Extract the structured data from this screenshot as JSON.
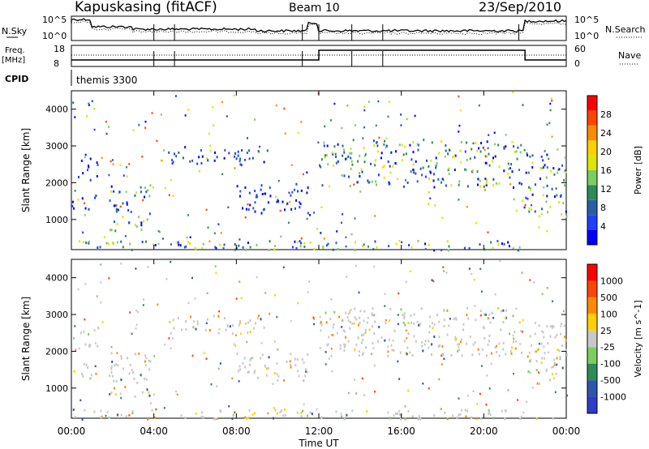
{
  "header": {
    "station": "Kapuskasing (fitACF)",
    "beam": "Beam 10",
    "date": "23/Sep/2010"
  },
  "panels": {
    "nsky": {
      "label": "N.Sky",
      "ticks_left": [
        "10^5",
        "10^0"
      ],
      "ticks_right": [
        "10^5",
        "10^0"
      ],
      "right_label": "N.Search"
    },
    "freq": {
      "label": "Freq.",
      "unit": "[MHz]",
      "ticks_left": [
        "18",
        "8"
      ],
      "ticks_right": [
        "60",
        "0"
      ],
      "right_label": "Nave"
    },
    "cpid": {
      "label": "CPID",
      "program": "themis 3300"
    }
  },
  "chart_data": [
    {
      "type": "heatmap",
      "title": "Power",
      "ylabel": "Slant Range [km]",
      "colorbar_label": "Power [dB]",
      "colorbar_ticks": [
        "28",
        "24",
        "20",
        "16",
        "12",
        "8",
        "4"
      ],
      "colorbar_colors": [
        "#0000ff",
        "#1f3fff",
        "#2a5fa8",
        "#2e8b57",
        "#7ccd5f",
        "#dce600",
        "#ffd000",
        "#ff8c00",
        "#ff4500",
        "#ff0000"
      ],
      "ylim": [
        180,
        4500
      ],
      "yticks": [
        "1000",
        "2000",
        "3000",
        "4000"
      ],
      "xlim": [
        "00:00",
        "24:00"
      ],
      "regions": [
        {
          "t": [
            0,
            1.2
          ],
          "r": [
            1300,
            1700
          ],
          "level": "low"
        },
        {
          "t": [
            0.2,
            1.3
          ],
          "r": [
            2100,
            2700
          ],
          "level": "low"
        },
        {
          "t": [
            1.8,
            3.8
          ],
          "r": [
            700,
            2000
          ],
          "level": "mixed"
        },
        {
          "t": [
            4.5,
            9.5
          ],
          "r": [
            2500,
            3000
          ],
          "level": "low"
        },
        {
          "t": [
            8.0,
            11.5
          ],
          "r": [
            1200,
            2000
          ],
          "level": "low"
        },
        {
          "t": [
            12.0,
            21.8
          ],
          "r": [
            1900,
            3200
          ],
          "level": "mixed"
        },
        {
          "t": [
            22.0,
            24.0
          ],
          "r": [
            1100,
            2800
          ],
          "level": "mixed"
        },
        {
          "t": [
            0.0,
            21.8
          ],
          "r": [
            180,
            450
          ],
          "level": "mixed"
        }
      ]
    },
    {
      "type": "heatmap",
      "title": "Velocity",
      "ylabel": "Slant Range [km]",
      "xlabel": "Time UT",
      "colorbar_label": "Velocity [m s^-1]",
      "colorbar_ticks": [
        "1000",
        "500",
        "100",
        "25",
        "-25",
        "-100",
        "-500",
        "-1000"
      ],
      "colorbar_colors": [
        "#2e3cc8",
        "#2e56a8",
        "#2e8b57",
        "#7ccd5f",
        "#c8c8c8",
        "#ffd000",
        "#ff8c00",
        "#ff4500",
        "#ff0000"
      ],
      "ylim": [
        180,
        4500
      ],
      "yticks": [
        "1000",
        "2000",
        "3000",
        "4000"
      ],
      "xlim": [
        "00:00",
        "24:00"
      ],
      "xticks": [
        "00:00",
        "04:00",
        "08:00",
        "12:00",
        "16:00",
        "20:00",
        "00:00"
      ]
    }
  ]
}
